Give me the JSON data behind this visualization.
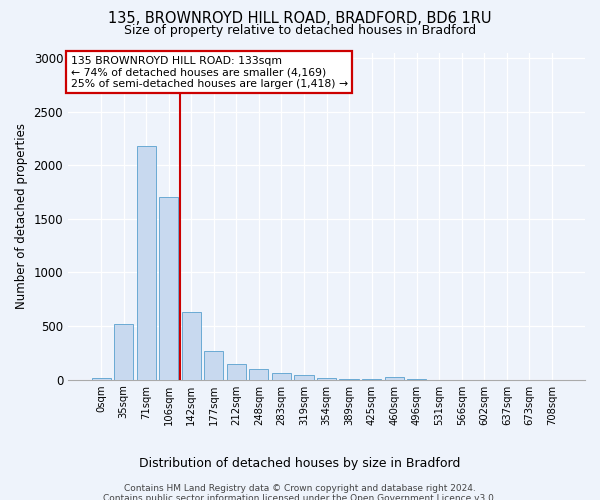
{
  "title1": "135, BROWNROYD HILL ROAD, BRADFORD, BD6 1RU",
  "title2": "Size of property relative to detached houses in Bradford",
  "xlabel": "Distribution of detached houses by size in Bradford",
  "ylabel": "Number of detached properties",
  "bar_color": "#c8d9ef",
  "bar_edge_color": "#6aaad4",
  "categories": [
    "0sqm",
    "35sqm",
    "71sqm",
    "106sqm",
    "142sqm",
    "177sqm",
    "212sqm",
    "248sqm",
    "283sqm",
    "319sqm",
    "354sqm",
    "389sqm",
    "425sqm",
    "460sqm",
    "496sqm",
    "531sqm",
    "566sqm",
    "602sqm",
    "637sqm",
    "673sqm",
    "708sqm"
  ],
  "values": [
    20,
    520,
    2175,
    1700,
    630,
    270,
    150,
    100,
    60,
    40,
    20,
    10,
    5,
    25,
    5,
    0,
    0,
    0,
    0,
    0,
    0
  ],
  "annotation_line1": "135 BROWNROYD HILL ROAD: 133sqm",
  "annotation_line2": "← 74% of detached houses are smaller (4,169)",
  "annotation_line3": "25% of semi-detached houses are larger (1,418) →",
  "annotation_box_facecolor": "#ffffff",
  "annotation_box_edgecolor": "#cc0000",
  "vline_color": "#cc0000",
  "vline_x_index": 3.5,
  "ylim": [
    0,
    3050
  ],
  "yticks": [
    0,
    500,
    1000,
    1500,
    2000,
    2500,
    3000
  ],
  "footer1": "Contains HM Land Registry data © Crown copyright and database right 2024.",
  "footer2": "Contains public sector information licensed under the Open Government Licence v3.0.",
  "bg_color": "#eef3fb",
  "grid_color": "#ffffff"
}
